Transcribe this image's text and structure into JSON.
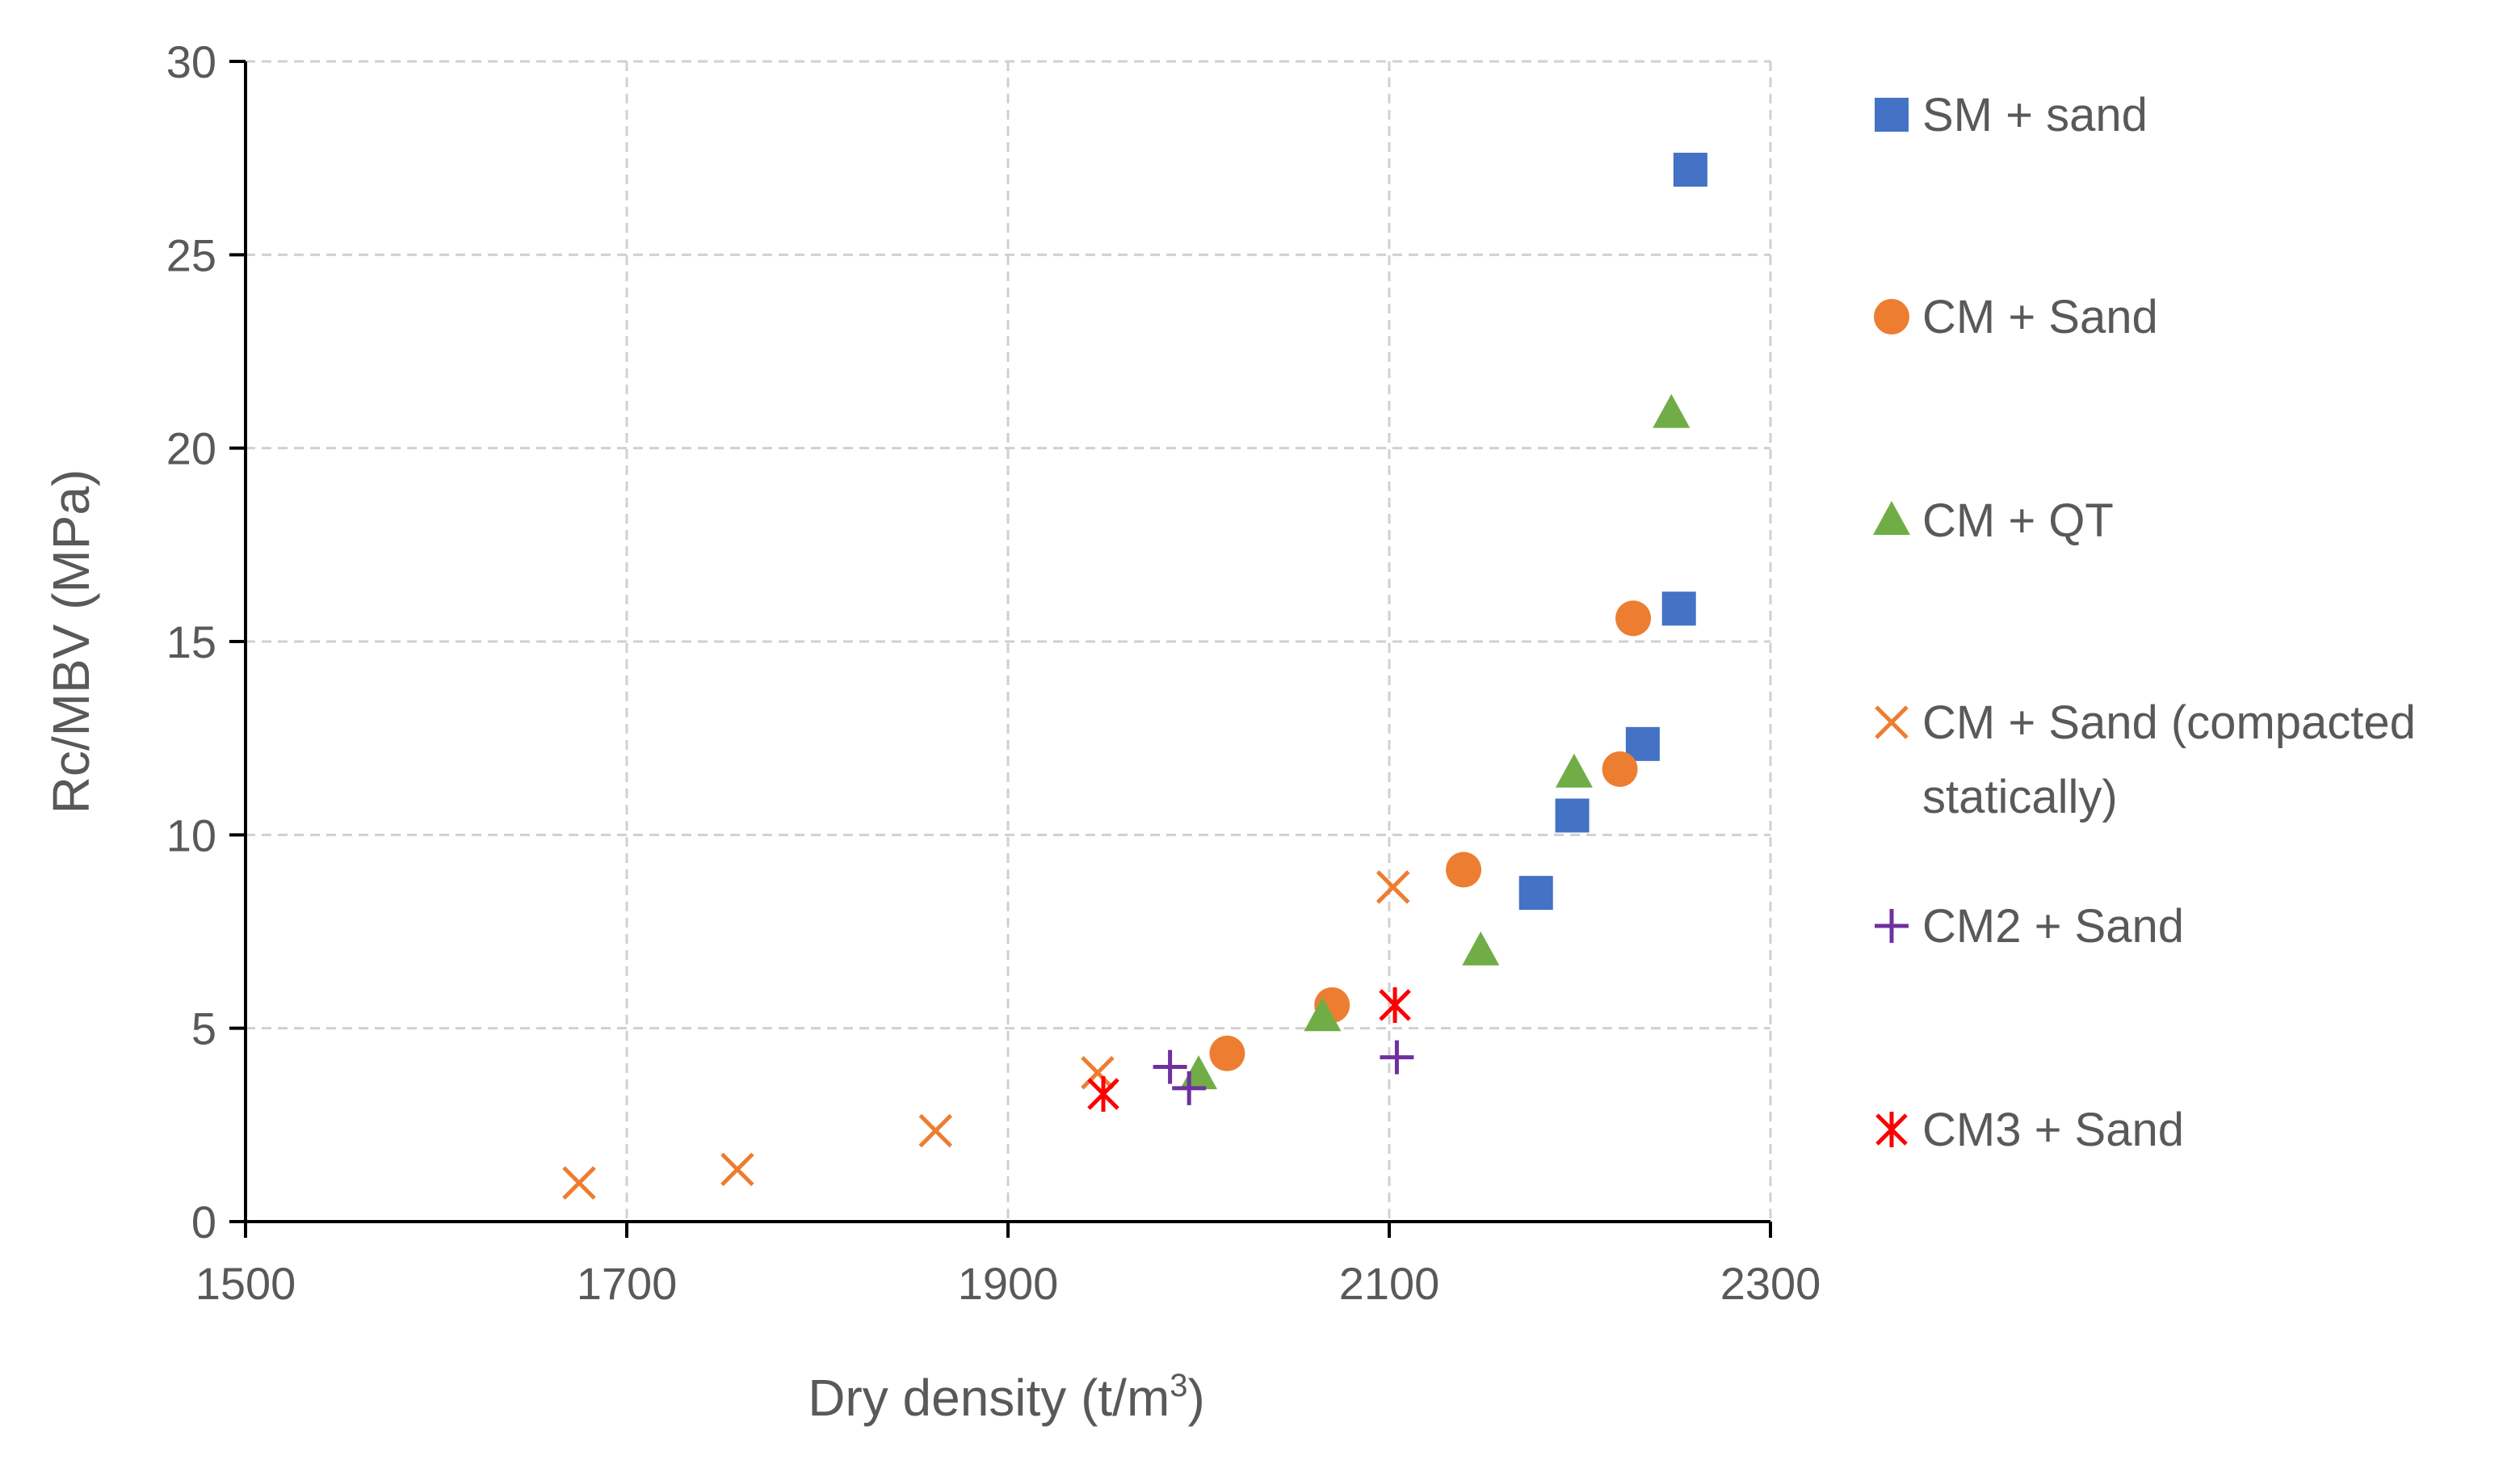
{
  "chart_data": {
    "type": "scatter",
    "title": "",
    "xlabel": "Dry density (t/m",
    "xlabel_sup": "3",
    "xlabel_end": ")",
    "ylabel": "Rc/MBV (MPa)",
    "xlim": [
      1500,
      2300
    ],
    "ylim": [
      0,
      30
    ],
    "xticks": [
      1500,
      1700,
      1900,
      2100,
      2300
    ],
    "yticks": [
      0,
      5,
      10,
      15,
      20,
      25,
      30
    ],
    "grid": true,
    "legend_position": "right",
    "series": [
      {
        "name": "SM + sand",
        "legend_lines": [
          "SM + sand"
        ],
        "marker": "square",
        "color": "#4472C4",
        "points": [
          [
            2177,
            8.5
          ],
          [
            2196,
            10.5
          ],
          [
            2233,
            12.35
          ],
          [
            2252,
            15.85
          ],
          [
            2258,
            27.2
          ]
        ]
      },
      {
        "name": "CM + Sand",
        "legend_lines": [
          "CM + Sand"
        ],
        "marker": "circle",
        "color": "#ED7D31",
        "points": [
          [
            2015,
            4.35
          ],
          [
            2070,
            5.6
          ],
          [
            2139,
            9.1
          ],
          [
            2221,
            11.7
          ],
          [
            2228,
            15.6
          ]
        ]
      },
      {
        "name": "CM + QT",
        "legend_lines": [
          "CM + QT"
        ],
        "marker": "triangle",
        "color": "#70AD47",
        "points": [
          [
            2000,
            3.8
          ],
          [
            2065,
            5.3
          ],
          [
            2148,
            7.0
          ],
          [
            2197,
            11.6
          ],
          [
            2248,
            20.9
          ]
        ]
      },
      {
        "name": "CM + Sand (compacted statically)",
        "legend_lines": [
          "CM + Sand (compacted",
          "statically)"
        ],
        "marker": "x",
        "color": "#ED7D31",
        "points": [
          [
            1675,
            1.0
          ],
          [
            1758,
            1.35
          ],
          [
            1862,
            2.35
          ],
          [
            1947,
            3.85
          ],
          [
            2102,
            8.65
          ]
        ]
      },
      {
        "name": "CM2 + Sand",
        "legend_lines": [
          "CM2 + Sand"
        ],
        "marker": "plus",
        "color": "#7030A0",
        "points": [
          [
            1985,
            4.0
          ],
          [
            1995,
            3.45
          ],
          [
            2104,
            4.25
          ]
        ]
      },
      {
        "name": "CM3 + Sand",
        "legend_lines": [
          "CM3 + Sand"
        ],
        "marker": "star",
        "color": "#FF0000",
        "points": [
          [
            1950,
            3.3
          ],
          [
            2103,
            5.6
          ]
        ]
      }
    ]
  }
}
